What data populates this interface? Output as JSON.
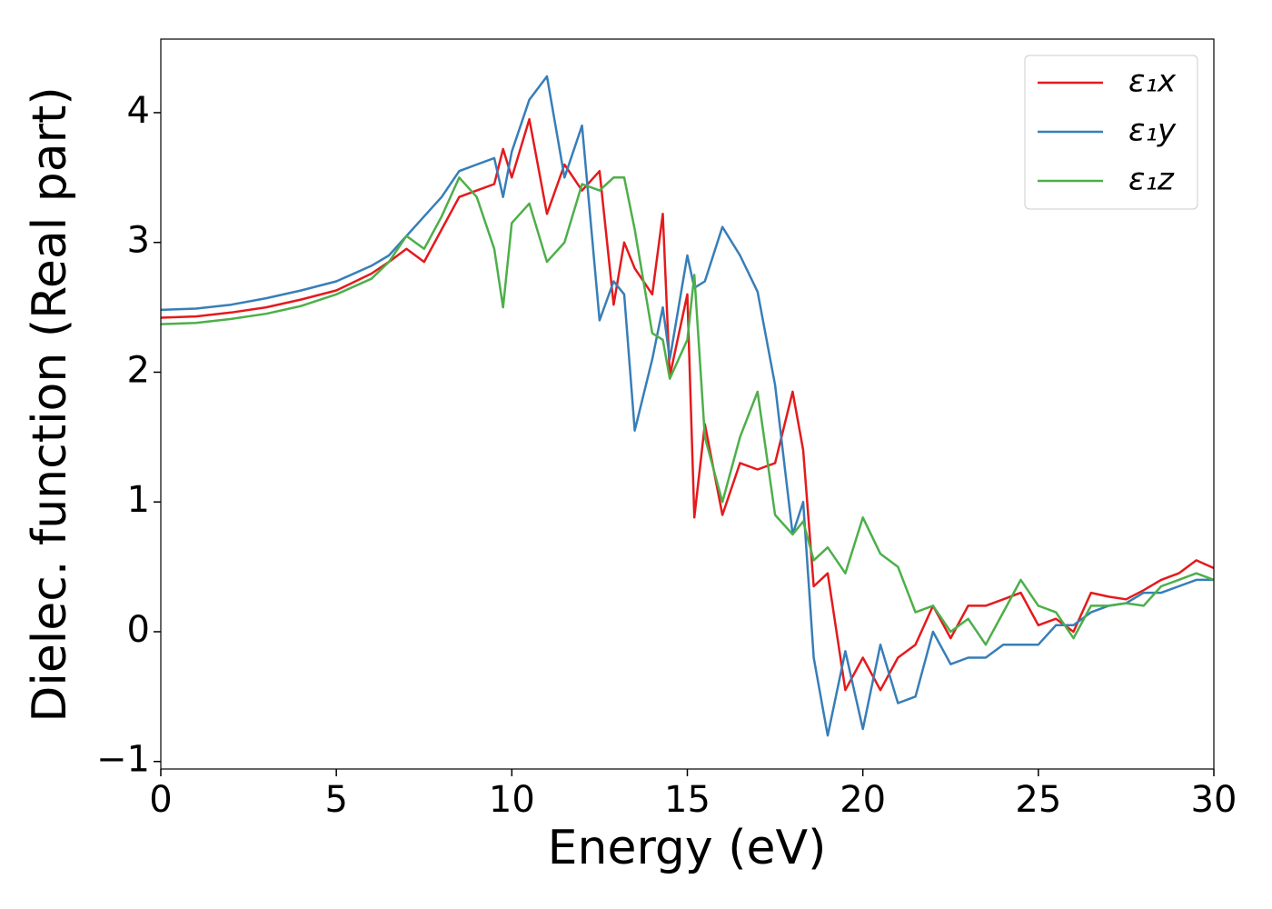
{
  "chart_data": {
    "type": "line",
    "xlabel": "Energy (eV)",
    "ylabel": "Dielec. function (Real part)",
    "x": [
      0,
      1,
      2,
      3,
      4,
      5,
      6,
      6.5,
      7,
      7.5,
      8,
      8.5,
      9,
      9.5,
      9.75,
      10,
      10.5,
      11,
      11.5,
      12,
      12.5,
      12.9,
      13.2,
      13.5,
      14,
      14.3,
      14.5,
      15,
      15.2,
      15.5,
      16,
      16.5,
      17,
      17.5,
      18,
      18.3,
      18.6,
      19,
      19.5,
      20,
      20.5,
      21,
      21.5,
      22,
      22.5,
      23,
      23.5,
      24,
      24.5,
      25,
      25.5,
      26,
      26.5,
      27,
      27.5,
      28,
      28.5,
      29,
      29.5,
      30
    ],
    "series": [
      {
        "name": "ε₁x",
        "color": "#e41a1c",
        "values": [
          2.42,
          2.43,
          2.46,
          2.5,
          2.56,
          2.63,
          2.76,
          2.85,
          2.95,
          2.85,
          3.1,
          3.35,
          3.4,
          3.45,
          3.72,
          3.5,
          3.95,
          3.22,
          3.6,
          3.4,
          3.55,
          2.52,
          3.0,
          2.8,
          2.6,
          3.22,
          1.97,
          2.6,
          0.88,
          1.6,
          0.9,
          1.3,
          1.25,
          1.3,
          1.85,
          1.4,
          0.35,
          0.45,
          -0.45,
          -0.2,
          -0.45,
          -0.2,
          -0.1,
          0.2,
          -0.05,
          0.2,
          0.2,
          0.25,
          0.3,
          0.05,
          0.1,
          0.0,
          0.3,
          0.27,
          0.25,
          0.32,
          0.4,
          0.45,
          0.55,
          0.49
        ]
      },
      {
        "name": "ε₁y",
        "color": "#377eb8",
        "values": [
          2.48,
          2.49,
          2.52,
          2.57,
          2.63,
          2.7,
          2.82,
          2.9,
          3.05,
          3.2,
          3.35,
          3.55,
          3.6,
          3.65,
          3.35,
          3.7,
          4.1,
          4.28,
          3.5,
          3.9,
          2.4,
          2.7,
          2.6,
          1.55,
          2.1,
          2.5,
          2.1,
          2.9,
          2.65,
          2.7,
          3.12,
          2.9,
          2.62,
          1.9,
          0.75,
          1.0,
          -0.2,
          -0.8,
          -0.15,
          -0.75,
          -0.1,
          -0.55,
          -0.5,
          0.0,
          -0.25,
          -0.2,
          -0.2,
          -0.1,
          -0.1,
          -0.1,
          0.05,
          0.05,
          0.15,
          0.2,
          0.22,
          0.3,
          0.3,
          0.35,
          0.4,
          0.4
        ]
      },
      {
        "name": "ε₁z",
        "color": "#4daf4a",
        "values": [
          2.37,
          2.38,
          2.41,
          2.45,
          2.51,
          2.6,
          2.72,
          2.85,
          3.05,
          2.95,
          3.2,
          3.5,
          3.35,
          2.95,
          2.5,
          3.15,
          3.3,
          2.85,
          3.0,
          3.45,
          3.4,
          3.5,
          3.5,
          3.1,
          2.3,
          2.25,
          1.95,
          2.25,
          2.75,
          1.5,
          1.0,
          1.5,
          1.85,
          0.9,
          0.75,
          0.85,
          0.55,
          0.65,
          0.45,
          0.88,
          0.6,
          0.5,
          0.15,
          0.2,
          0.0,
          0.1,
          -0.1,
          0.15,
          0.4,
          0.2,
          0.15,
          -0.05,
          0.2,
          0.2,
          0.22,
          0.2,
          0.35,
          0.4,
          0.45,
          0.4
        ]
      }
    ],
    "xlim": [
      0,
      30
    ],
    "xticks": [
      0,
      5,
      10,
      15,
      20,
      25,
      30
    ],
    "ylim": [
      -1.058,
      4.567
    ],
    "yticks": [
      {
        "value": -1,
        "label": "−1"
      },
      0,
      1,
      2,
      3,
      4
    ],
    "legend": "upper right",
    "grid": false
  }
}
